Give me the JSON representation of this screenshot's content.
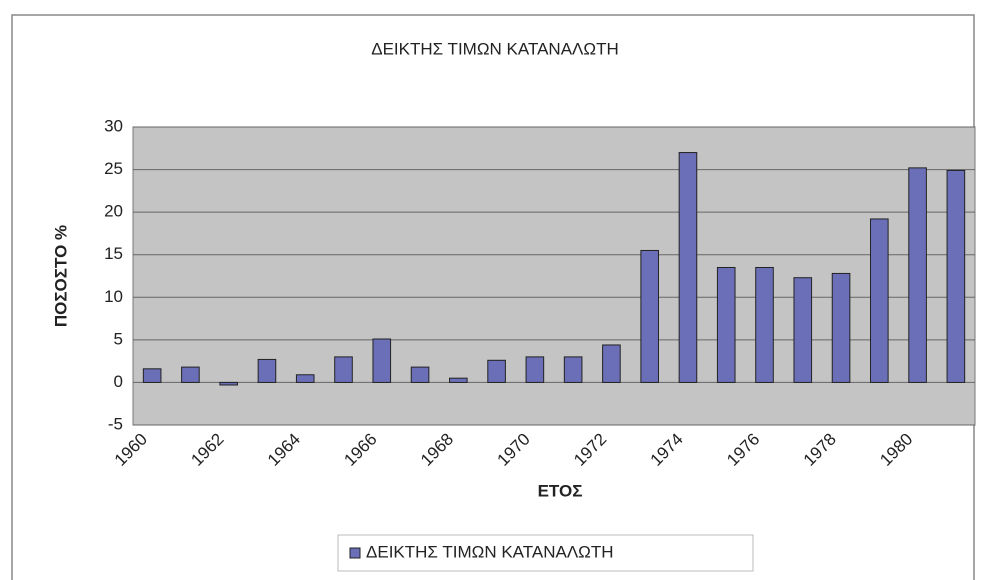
{
  "chart_data": {
    "type": "bar",
    "title": "ΔΕΙΚΤΗΣ ΤΙΜΩΝ ΚΑΤΑΝΑΛΩΤΗ",
    "x_label": "ΕΤΟΣ",
    "y_label": "ΠΟΣΟΣΤΟ %",
    "categories": [
      "1960",
      null,
      "1962",
      null,
      "1964",
      null,
      "1966",
      null,
      "1968",
      null,
      "1970",
      null,
      "1972",
      null,
      "1974",
      null,
      "1976",
      null,
      "1978",
      null,
      "1980",
      null
    ],
    "series": [
      {
        "name": "ΔΕΙΚΤΗΣ ΤΙΜΩΝ ΚΑΤΑΝΑΛΩΤΗ",
        "color": "#6a6fb8",
        "values": [
          1.6,
          1.8,
          -0.3,
          2.7,
          0.9,
          3.0,
          5.1,
          1.8,
          0.5,
          2.6,
          3.0,
          3.0,
          4.4,
          15.5,
          27.0,
          13.5,
          13.5,
          12.3,
          12.8,
          19.2,
          25.2,
          24.9
        ]
      }
    ],
    "ylim": [
      -5,
      30
    ],
    "yticks": [
      -5,
      0,
      5,
      10,
      15,
      20,
      25,
      30
    ],
    "grid": true,
    "legend": "bottom"
  }
}
